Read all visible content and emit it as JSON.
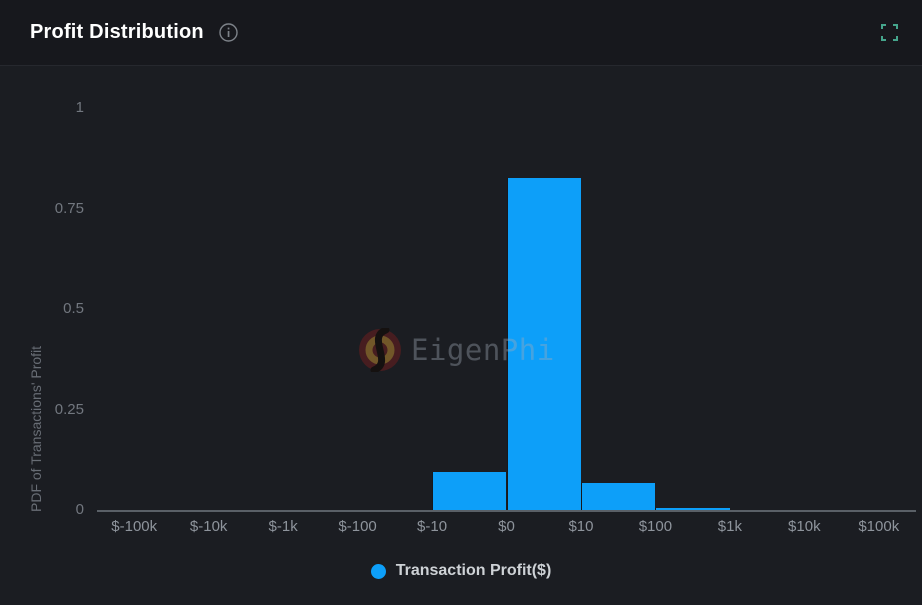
{
  "header": {
    "title": "Profit Distribution"
  },
  "icons": {
    "info": "info-circle",
    "fullscreen": "fullscreen-expand"
  },
  "colors": {
    "background": "#1b1d22",
    "header_background": "#17181d",
    "bar": "#0d9ff9",
    "axis_line": "#5a6067",
    "fullscreen_icon": "#45a58c",
    "title_text": "#ffffff",
    "tick_text": "#8e949c"
  },
  "chart_data": {
    "type": "bar",
    "title": "Profit Distribution",
    "xlabel": "",
    "ylabel": "PDF of Transactions' Profit",
    "x_tick_labels": [
      "$-100k",
      "$-10k",
      "$-1k",
      "$-100",
      "$-10",
      "$0",
      "$10",
      "$100",
      "$1k",
      "$10k",
      "$100k"
    ],
    "y_ticks": [
      0,
      0.25,
      0.5,
      0.75,
      1
    ],
    "y_tick_labels": [
      "0",
      "0.25",
      "0.5",
      "0.75",
      "1"
    ],
    "ylim": [
      0,
      1
    ],
    "grid": false,
    "legend_position": "bottom",
    "series": [
      {
        "name": "Transaction Profit($)",
        "color": "#0d9ff9",
        "bins": [
          {
            "from": "$-100k",
            "to": "$-10k",
            "value": 0
          },
          {
            "from": "$-10k",
            "to": "$-1k",
            "value": 0
          },
          {
            "from": "$-1k",
            "to": "$-100",
            "value": 0
          },
          {
            "from": "$-100",
            "to": "$-10",
            "value": 0
          },
          {
            "from": "$-10",
            "to": "$0",
            "value": 0.095
          },
          {
            "from": "$0",
            "to": "$10",
            "value": 0.825
          },
          {
            "from": "$10",
            "to": "$100",
            "value": 0.067
          },
          {
            "from": "$100",
            "to": "$1k",
            "value": 0.006
          },
          {
            "from": "$1k",
            "to": "$10k",
            "value": 0
          },
          {
            "from": "$10k",
            "to": "$100k",
            "value": 0
          }
        ]
      }
    ]
  },
  "legend": {
    "label": "Transaction Profit($)"
  },
  "watermark": {
    "text": "EigenPhi"
  }
}
